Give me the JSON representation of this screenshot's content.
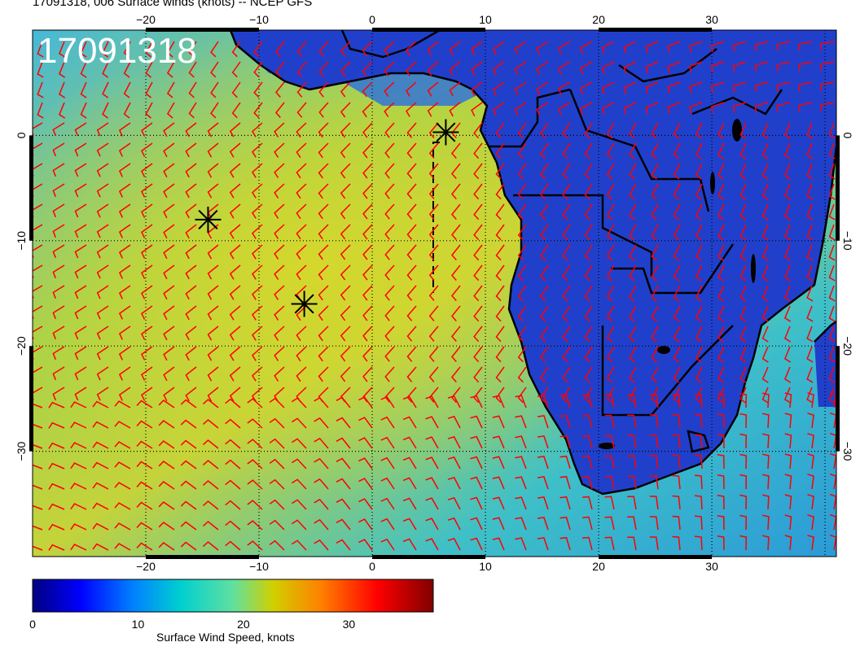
{
  "title": "17091318, 006 Surface winds (knots) -- NCEP GFS",
  "time_stamp": "17091318",
  "map": {
    "lon_range": [
      -30,
      41
    ],
    "lat_range": [
      -40,
      10
    ],
    "lon_ticks": [
      -20,
      -10,
      0,
      10,
      20,
      30
    ],
    "lat_ticks": [
      0,
      -10,
      -20,
      -30
    ],
    "lon_tick_labels": [
      "−20",
      "−10",
      "0",
      "10",
      "20",
      "30"
    ],
    "lat_tick_labels": [
      "0",
      "−10",
      "−20",
      "−30"
    ],
    "markers": [
      {
        "name": "storm-marker-1",
        "lon": -14.5,
        "lat": -8
      },
      {
        "name": "storm-marker-2",
        "lon": -6,
        "lat": -16
      },
      {
        "name": "storm-marker-3",
        "lon": 6.5,
        "lat": 0.3
      }
    ],
    "land_color": "#1f3fd6",
    "ocean_strong_color": "#c9d42a",
    "barb_color": "#ff0000"
  },
  "colorbar": {
    "label": "Surface Wind Speed, knots",
    "range": [
      0,
      38
    ],
    "ticks": [
      0,
      10,
      20,
      30
    ],
    "tick_labels": [
      "0",
      "10",
      "20",
      "30"
    ],
    "colors": [
      "#000080",
      "#0000ff",
      "#0080ff",
      "#00d0d0",
      "#80e080",
      "#d0d000",
      "#ff8000",
      "#ff0000",
      "#800000"
    ]
  }
}
